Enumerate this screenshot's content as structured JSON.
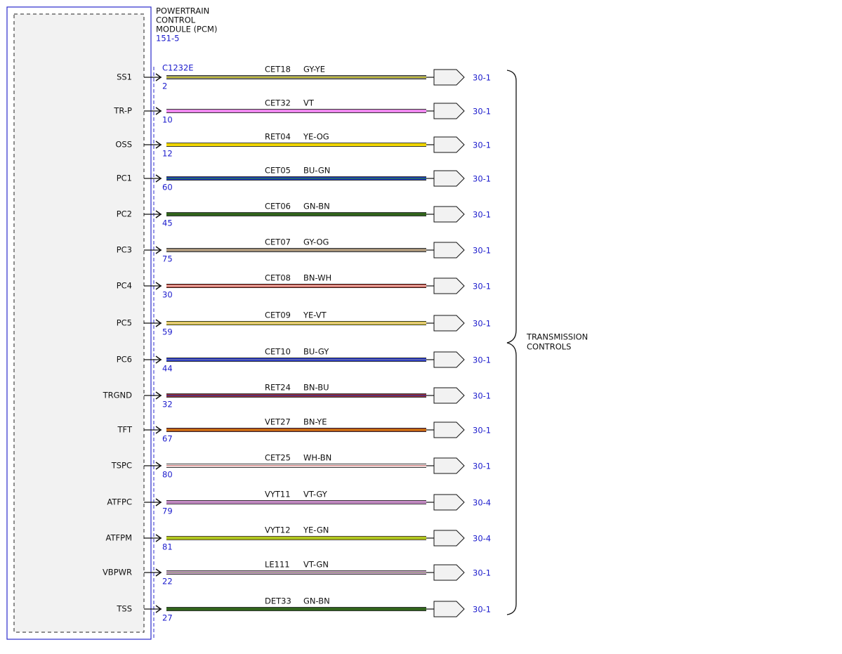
{
  "module": {
    "title_lines": [
      "POWERTRAIN",
      "CONTROL",
      "MODULE (PCM)"
    ],
    "code": "151-5",
    "connector": "C1232E"
  },
  "destination": {
    "label_lines": [
      "TRANSMISSION",
      "CONTROLS"
    ]
  },
  "rows": [
    {
      "signal": "SS1",
      "pin": "2",
      "circuit": "CET18",
      "color": "GY-YE",
      "ref": "30-1",
      "wire_color": "#8c8c84",
      "stripe_color": "#d8d000"
    },
    {
      "signal": "TR-P",
      "pin": "10",
      "circuit": "CET32",
      "color": "VT",
      "ref": "30-1",
      "wire_color": "#ee88ee",
      "stripe_color": "#ee88ee"
    },
    {
      "signal": "OSS",
      "pin": "12",
      "circuit": "RET04",
      "color": "YE-OG",
      "ref": "30-1",
      "wire_color": "#f2e400",
      "stripe_color": "#f0c000"
    },
    {
      "signal": "PC1",
      "pin": "60",
      "circuit": "CET05",
      "color": "BU-GN",
      "ref": "30-1",
      "wire_color": "#1a2fc0",
      "stripe_color": "#2a8a40"
    },
    {
      "signal": "PC2",
      "pin": "45",
      "circuit": "CET06",
      "color": "GN-BN",
      "ref": "30-1",
      "wire_color": "#2d6b1e",
      "stripe_color": "#3a5a1a"
    },
    {
      "signal": "PC3",
      "pin": "75",
      "circuit": "CET07",
      "color": "GY-OG",
      "ref": "30-1",
      "wire_color": "#9a8e80",
      "stripe_color": "#c0a070"
    },
    {
      "signal": "PC4",
      "pin": "30",
      "circuit": "CET08",
      "color": "BN-WH",
      "ref": "30-1",
      "wire_color": "#c0392b",
      "stripe_color": "#ffffff"
    },
    {
      "signal": "PC5",
      "pin": "59",
      "circuit": "CET09",
      "color": "YE-VT",
      "ref": "30-1",
      "wire_color": "#eadc30",
      "stripe_color": "#d8b0c8"
    },
    {
      "signal": "PC6",
      "pin": "44",
      "circuit": "CET10",
      "color": "BU-GY",
      "ref": "30-1",
      "wire_color": "#1a2fd0",
      "stripe_color": "#8080a0"
    },
    {
      "signal": "TRGND",
      "pin": "32",
      "circuit": "RET24",
      "color": "BN-BU",
      "ref": "30-1",
      "wire_color": "#a03030",
      "stripe_color": "#3030a0"
    },
    {
      "signal": "TFT",
      "pin": "67",
      "circuit": "VET27",
      "color": "BN-YE",
      "ref": "30-1",
      "wire_color": "#b04020",
      "stripe_color": "#e0a000"
    },
    {
      "signal": "TSPC",
      "pin": "80",
      "circuit": "CET25",
      "color": "WH-BN",
      "ref": "30-1",
      "wire_color": "#ffffff",
      "stripe_color": "#c06060"
    },
    {
      "signal": "ATFPC",
      "pin": "79",
      "circuit": "VYT11",
      "color": "VT-GY",
      "ref": "30-4",
      "wire_color": "#d890d8",
      "stripe_color": "#a080a0"
    },
    {
      "signal": "ATFPM",
      "pin": "81",
      "circuit": "VYT12",
      "color": "YE-GN",
      "ref": "30-4",
      "wire_color": "#e8e020",
      "stripe_color": "#60a020"
    },
    {
      "signal": "VBPWR",
      "pin": "22",
      "circuit": "LE111",
      "color": "VT-GN",
      "ref": "30-1",
      "wire_color": "#d0a0d0",
      "stripe_color": "#8a9a70"
    },
    {
      "signal": "TSS",
      "pin": "27",
      "circuit": "DET33",
      "color": "GN-BN",
      "ref": "30-1",
      "wire_color": "#2d6b1e",
      "stripe_color": "#3a5a1a"
    }
  ]
}
